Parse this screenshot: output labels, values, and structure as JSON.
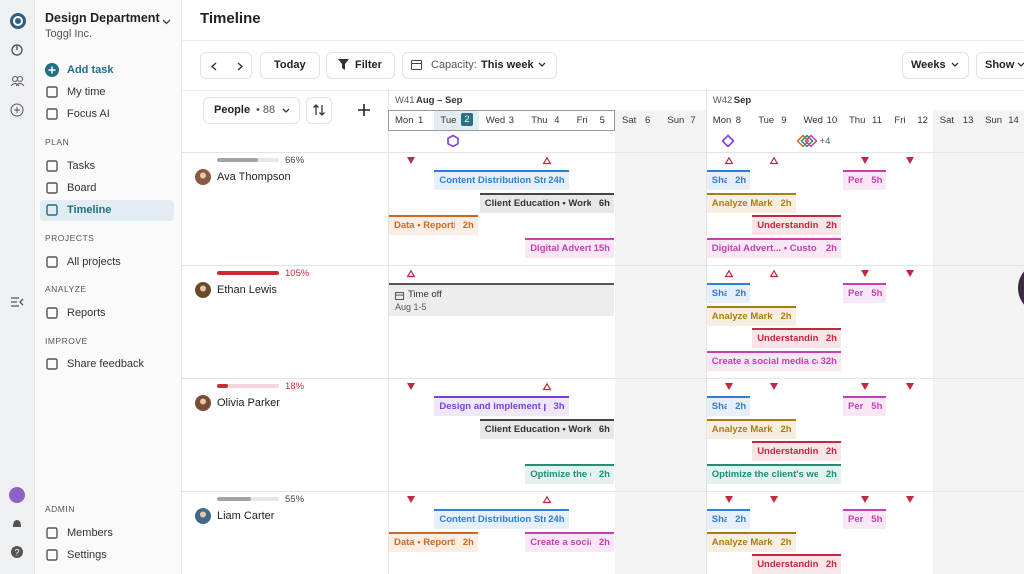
{
  "sidebar": {
    "workspace": "Design Department",
    "org": "Toggl Inc.",
    "add_task": "Add task",
    "items": [
      "My time",
      "Focus AI"
    ],
    "sections": [
      {
        "title": "PLAN",
        "items": [
          "Tasks",
          "Board",
          "Timeline"
        ]
      },
      {
        "title": "PROJECTS",
        "items": [
          "All projects"
        ]
      },
      {
        "title": "ANALYZE",
        "items": [
          "Reports"
        ]
      },
      {
        "title": "IMPROVE",
        "items": [
          "Share feedback"
        ]
      },
      {
        "title": "ADMIN",
        "items": [
          "Members",
          "Settings"
        ]
      }
    ]
  },
  "header": {
    "title": "Timeline"
  },
  "toolbar": {
    "today": "Today",
    "filter": "Filter",
    "capacity_label": "Capacity:",
    "capacity_value": "This week",
    "scale": "Weeks",
    "show": "Show"
  },
  "people_header": {
    "label": "People",
    "count": "• 88"
  },
  "weeks": [
    {
      "label": "W41",
      "range": "Aug – Sep"
    },
    {
      "label": "W42",
      "range": "Sep"
    }
  ],
  "days": [
    {
      "day": "Mon",
      "date": 1
    },
    {
      "day": "Tue",
      "date": 2
    },
    {
      "day": "Wed",
      "date": 3
    },
    {
      "day": "Thu",
      "date": 4
    },
    {
      "day": "Fri",
      "date": 5
    },
    {
      "day": "Sat",
      "date": 6
    },
    {
      "day": "Sun",
      "date": 7
    },
    {
      "day": "Mon",
      "date": 8
    },
    {
      "day": "Tue",
      "date": 9
    },
    {
      "day": "Wed",
      "date": 10
    },
    {
      "day": "Thu",
      "date": 11
    },
    {
      "day": "Fri",
      "date": 12
    },
    {
      "day": "Sat",
      "date": 13
    },
    {
      "day": "Sun",
      "date": 14
    }
  ],
  "milestones_more": "+4",
  "people": [
    {
      "name": "Ava Thompson",
      "capacity": {
        "value": 66,
        "label": "66%"
      },
      "bar_color": "#a3a3a3",
      "avatar_color": "#8a5a44",
      "tasks": [
        {
          "label": "Content Distribution Str",
          "hours": "24h",
          "color": "#2f7fd6"
        },
        {
          "label": "Client Education • Worksl",
          "hours": "6h",
          "color": "#444444"
        },
        {
          "label": "Data • Reporti",
          "hours": "2h",
          "color": "#d0691f"
        },
        {
          "label": "Digital Advert",
          "hours": "15h",
          "color": "#c63fb3"
        },
        {
          "label": "Sha",
          "hours": "2h",
          "color": "#2f7fd6"
        },
        {
          "label": "Per",
          "hours": "5h",
          "color": "#c63fb3"
        },
        {
          "label": "Analyze Marke",
          "hours": "2h",
          "color": "#b07a12"
        },
        {
          "label": "Understandin",
          "hours": "2h",
          "color": "#c2283f"
        },
        {
          "label": "Digital Advert... • Custo",
          "hours": "2h",
          "color": "#c63fb3"
        }
      ]
    },
    {
      "name": "Ethan Lewis",
      "capacity": {
        "value": 105,
        "label": "105%"
      },
      "bar_color": "#c62f36",
      "avatar_color": "#6b4a2c",
      "time_off": {
        "label": "Time off",
        "dates": "Aug 1-5"
      },
      "tasks": [
        {
          "label": "Sha",
          "hours": "2h",
          "color": "#2f7fd6"
        },
        {
          "label": "Per",
          "hours": "5h",
          "color": "#c63fb3"
        },
        {
          "label": "Analyze Marke",
          "hours": "2h",
          "color": "#b07a12"
        },
        {
          "label": "Understandin",
          "hours": "2h",
          "color": "#c2283f"
        },
        {
          "label": "Create a social media ca",
          "hours": "32h",
          "color": "#c63fb3"
        }
      ]
    },
    {
      "name": "Olivia Parker",
      "capacity": {
        "value": 18,
        "label": "18%"
      },
      "bar_color": "#c62f36",
      "avatar_color": "#7a4b3a",
      "tasks": [
        {
          "label": "Design and implement pa",
          "hours": "3h",
          "color": "#7b3fe0"
        },
        {
          "label": "Client Education • Worksl",
          "hours": "6h",
          "color": "#444444"
        },
        {
          "label": "Optimize the c",
          "hours": "2h",
          "color": "#1f8f75"
        },
        {
          "label": "Sha",
          "hours": "2h",
          "color": "#2f7fd6"
        },
        {
          "label": "Per",
          "hours": "5h",
          "color": "#c63fb3"
        },
        {
          "label": "Analyze Marke",
          "hours": "2h",
          "color": "#b07a12"
        },
        {
          "label": "Understandin",
          "hours": "2h",
          "color": "#c2283f"
        },
        {
          "label": "Optimize the client's web",
          "hours": "2h",
          "color": "#1f8f75"
        }
      ]
    },
    {
      "name": "Liam Carter",
      "capacity": {
        "value": 55,
        "label": "55%"
      },
      "bar_color": "#a3a3a3",
      "avatar_color": "#3d6a8a",
      "tasks": [
        {
          "label": "Content Distribution Str",
          "hours": "24h",
          "color": "#2f7fd6"
        },
        {
          "label": "Data • Reporti",
          "hours": "2h",
          "color": "#d0691f"
        },
        {
          "label": "Create a social",
          "hours": "2h",
          "color": "#c63fb3"
        },
        {
          "label": "Sha",
          "hours": "2h",
          "color": "#2f7fd6"
        },
        {
          "label": "Per",
          "hours": "5h",
          "color": "#c63fb3"
        },
        {
          "label": "Analyze Marke",
          "hours": "2h",
          "color": "#b07a12"
        },
        {
          "label": "Understandin",
          "hours": "2h",
          "color": "#c2283f"
        }
      ]
    }
  ]
}
